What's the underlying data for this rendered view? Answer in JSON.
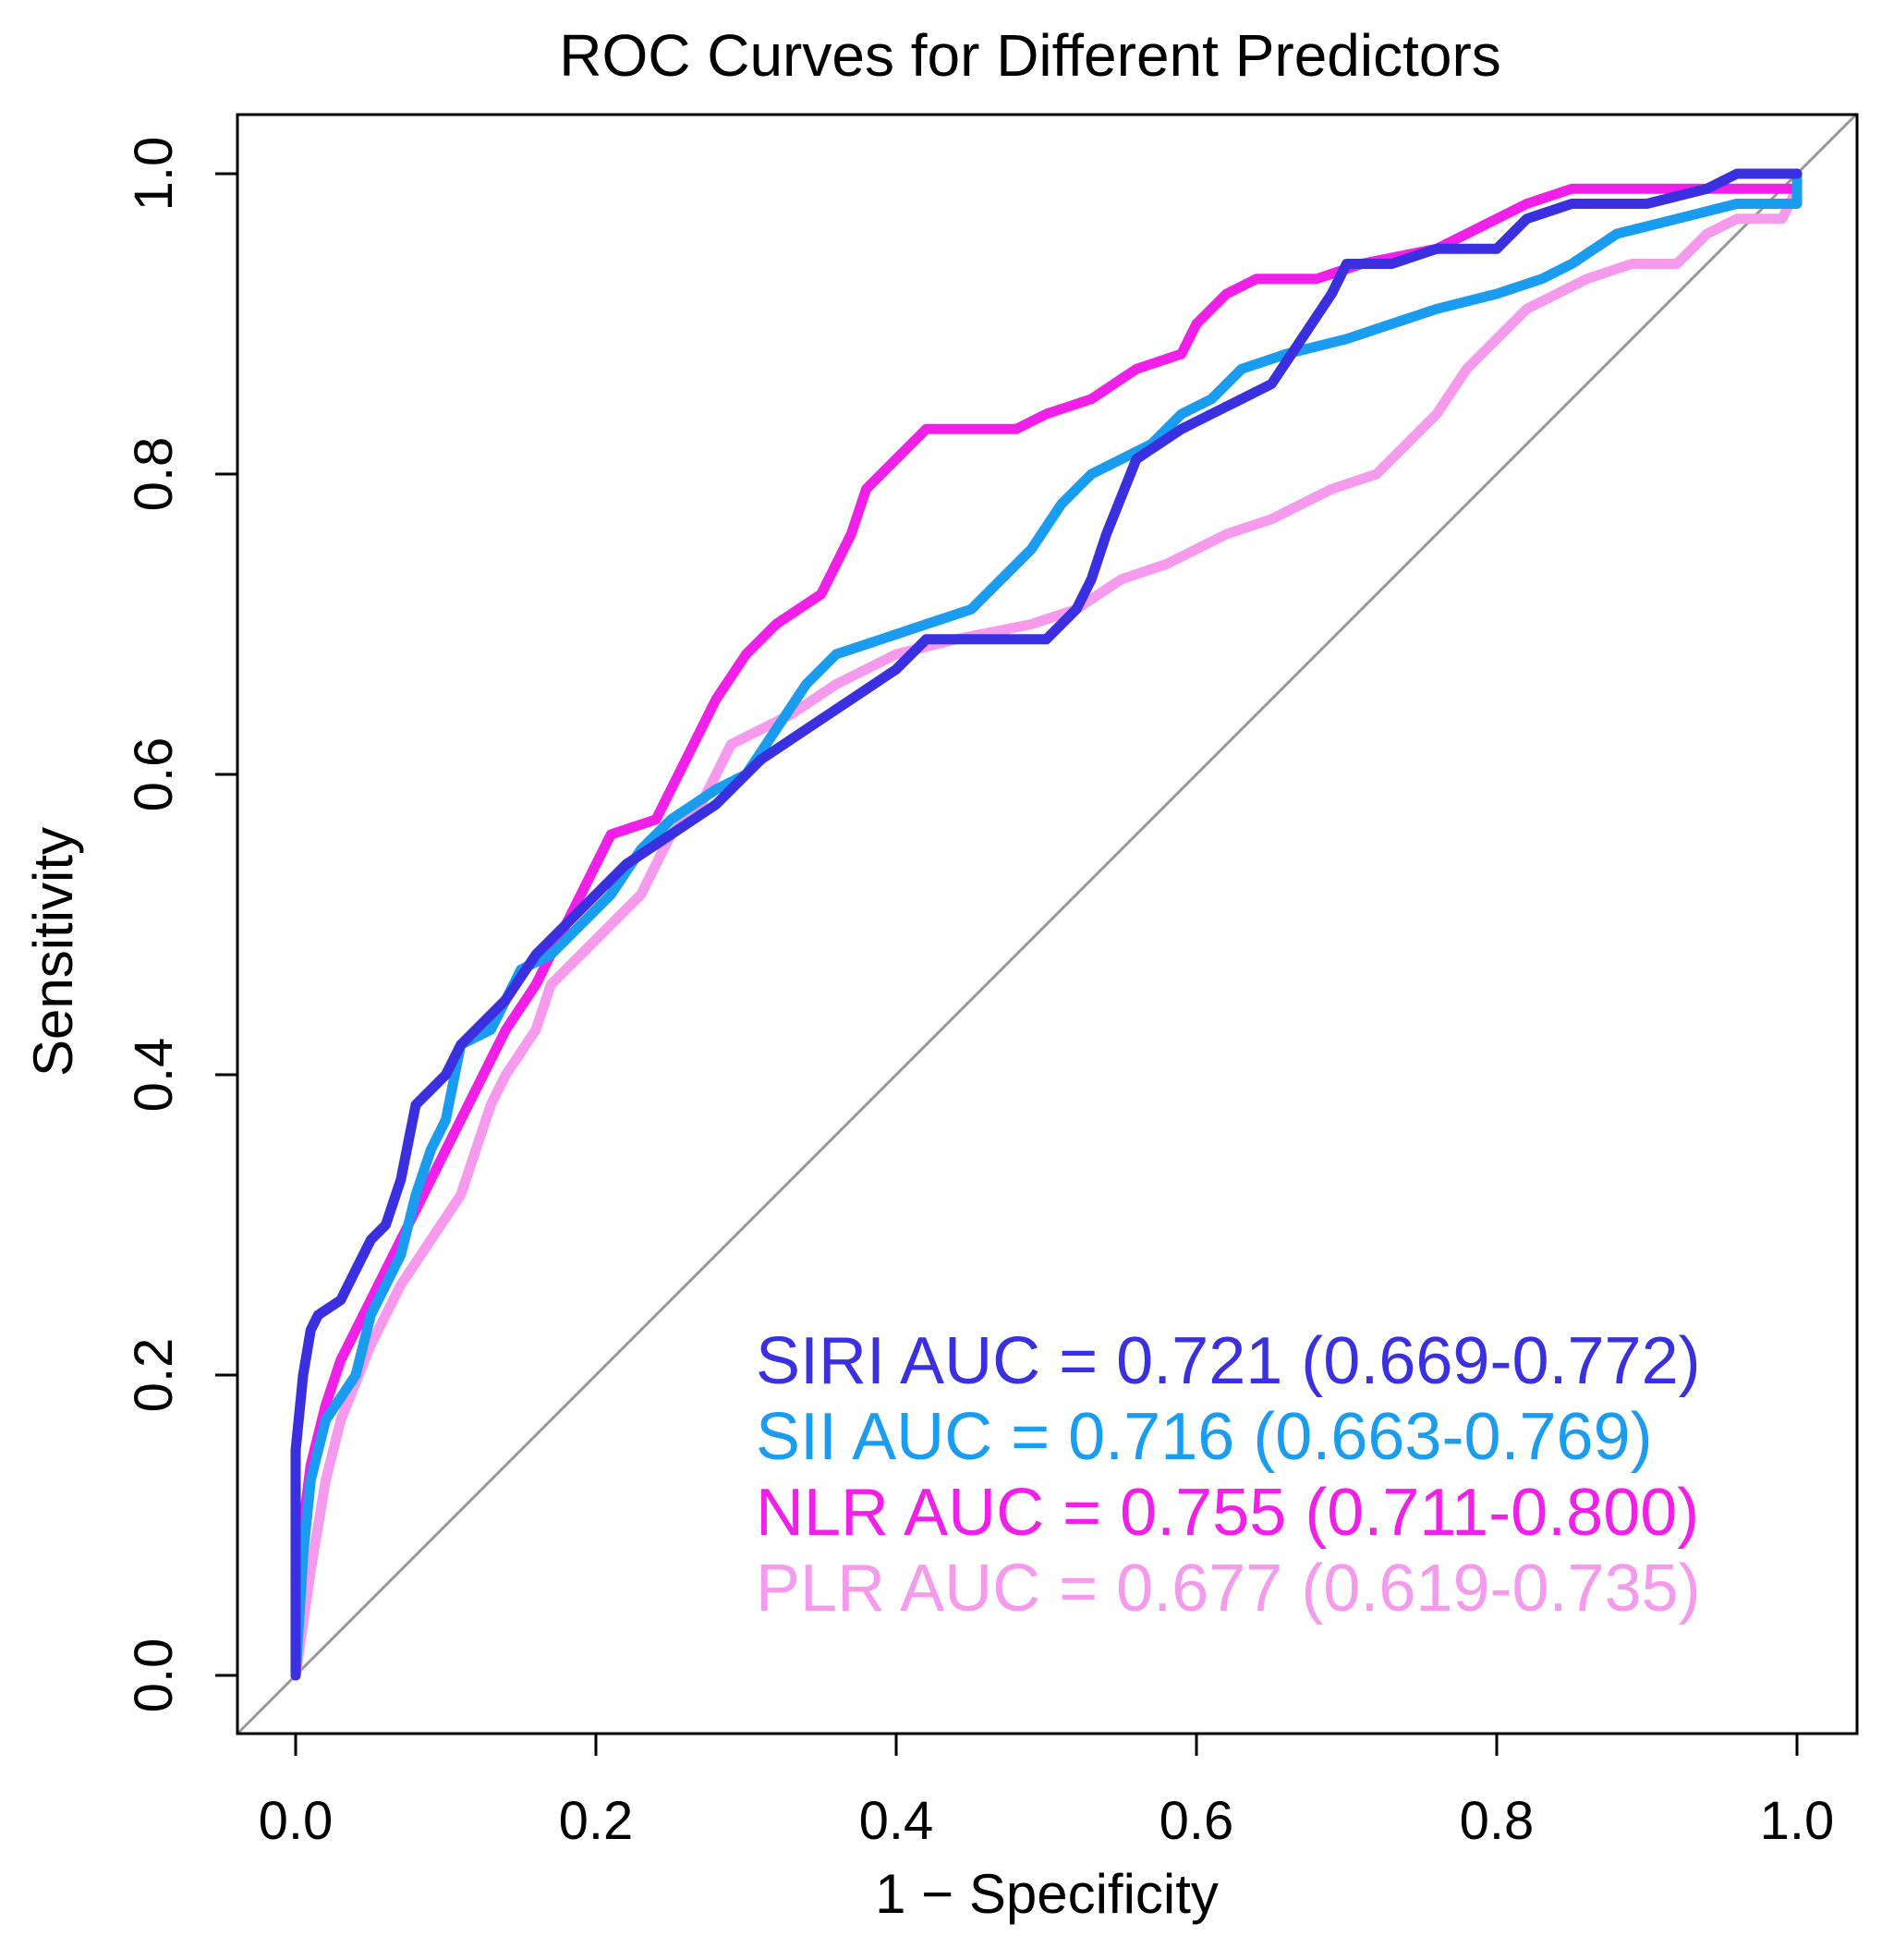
{
  "chart_data": {
    "type": "line",
    "title": "ROC Curves for Different Predictors",
    "xlabel": "1 − Specificity",
    "ylabel": "Sensitivity",
    "xlim": [
      0.0,
      1.0
    ],
    "ylim": [
      0.0,
      1.0
    ],
    "x_ticks": [
      "0.0",
      "0.2",
      "0.4",
      "0.6",
      "0.8",
      "1.0"
    ],
    "y_ticks": [
      "0.0",
      "0.2",
      "0.4",
      "0.6",
      "0.8",
      "1.0"
    ],
    "grid": false,
    "legend_position": "bottom-right",
    "reference_line": {
      "name": "chance diagonal",
      "x": [
        0,
        1
      ],
      "y": [
        0,
        1
      ],
      "color": "#999999"
    },
    "series": [
      {
        "name": "SIRI",
        "color": "#3a30e0",
        "legend_label": "SIRI AUC = 0.721 (0.669-0.772)",
        "points": [
          [
            0,
            0
          ],
          [
            0,
            0.15
          ],
          [
            0.005,
            0.2
          ],
          [
            0.01,
            0.23
          ],
          [
            0.015,
            0.24
          ],
          [
            0.03,
            0.25
          ],
          [
            0.04,
            0.27
          ],
          [
            0.05,
            0.29
          ],
          [
            0.06,
            0.3
          ],
          [
            0.07,
            0.33
          ],
          [
            0.08,
            0.38
          ],
          [
            0.09,
            0.39
          ],
          [
            0.1,
            0.4
          ],
          [
            0.11,
            0.42
          ],
          [
            0.12,
            0.43
          ],
          [
            0.14,
            0.45
          ],
          [
            0.16,
            0.48
          ],
          [
            0.18,
            0.5
          ],
          [
            0.2,
            0.52
          ],
          [
            0.22,
            0.54
          ],
          [
            0.25,
            0.56
          ],
          [
            0.28,
            0.58
          ],
          [
            0.31,
            0.61
          ],
          [
            0.34,
            0.63
          ],
          [
            0.37,
            0.65
          ],
          [
            0.4,
            0.67
          ],
          [
            0.42,
            0.69
          ],
          [
            0.45,
            0.69
          ],
          [
            0.5,
            0.69
          ],
          [
            0.52,
            0.71
          ],
          [
            0.53,
            0.73
          ],
          [
            0.54,
            0.76
          ],
          [
            0.56,
            0.81
          ],
          [
            0.59,
            0.83
          ],
          [
            0.61,
            0.84
          ],
          [
            0.63,
            0.85
          ],
          [
            0.65,
            0.86
          ],
          [
            0.67,
            0.89
          ],
          [
            0.69,
            0.92
          ],
          [
            0.7,
            0.94
          ],
          [
            0.73,
            0.94
          ],
          [
            0.76,
            0.95
          ],
          [
            0.8,
            0.95
          ],
          [
            0.82,
            0.97
          ],
          [
            0.85,
            0.98
          ],
          [
            0.9,
            0.98
          ],
          [
            0.94,
            0.99
          ],
          [
            0.96,
            1.0
          ],
          [
            1.0,
            1.0
          ]
        ]
      },
      {
        "name": "SII",
        "color": "#1a9cf0",
        "legend_label": "SII AUC = 0.716 (0.663-0.769)",
        "points": [
          [
            0,
            0
          ],
          [
            0.005,
            0.08
          ],
          [
            0.01,
            0.13
          ],
          [
            0.02,
            0.17
          ],
          [
            0.04,
            0.2
          ],
          [
            0.05,
            0.24
          ],
          [
            0.07,
            0.28
          ],
          [
            0.08,
            0.32
          ],
          [
            0.09,
            0.35
          ],
          [
            0.1,
            0.37
          ],
          [
            0.11,
            0.42
          ],
          [
            0.13,
            0.43
          ],
          [
            0.15,
            0.47
          ],
          [
            0.17,
            0.48
          ],
          [
            0.19,
            0.5
          ],
          [
            0.21,
            0.52
          ],
          [
            0.23,
            0.55
          ],
          [
            0.25,
            0.57
          ],
          [
            0.28,
            0.59
          ],
          [
            0.3,
            0.6
          ],
          [
            0.32,
            0.63
          ],
          [
            0.34,
            0.66
          ],
          [
            0.36,
            0.68
          ],
          [
            0.39,
            0.69
          ],
          [
            0.42,
            0.7
          ],
          [
            0.45,
            0.71
          ],
          [
            0.47,
            0.73
          ],
          [
            0.49,
            0.75
          ],
          [
            0.51,
            0.78
          ],
          [
            0.53,
            0.8
          ],
          [
            0.55,
            0.81
          ],
          [
            0.57,
            0.82
          ],
          [
            0.59,
            0.84
          ],
          [
            0.61,
            0.85
          ],
          [
            0.63,
            0.87
          ],
          [
            0.66,
            0.88
          ],
          [
            0.7,
            0.89
          ],
          [
            0.73,
            0.9
          ],
          [
            0.76,
            0.91
          ],
          [
            0.8,
            0.92
          ],
          [
            0.83,
            0.93
          ],
          [
            0.85,
            0.94
          ],
          [
            0.88,
            0.96
          ],
          [
            0.92,
            0.97
          ],
          [
            0.96,
            0.98
          ],
          [
            1.0,
            0.98
          ],
          [
            1.0,
            1.0
          ]
        ]
      },
      {
        "name": "NLR",
        "color": "#f020e8",
        "legend_label": "NLR AUC = 0.755 (0.711-0.800)",
        "points": [
          [
            0,
            0
          ],
          [
            0.005,
            0.1
          ],
          [
            0.01,
            0.14
          ],
          [
            0.02,
            0.18
          ],
          [
            0.03,
            0.21
          ],
          [
            0.05,
            0.25
          ],
          [
            0.07,
            0.29
          ],
          [
            0.09,
            0.33
          ],
          [
            0.1,
            0.35
          ],
          [
            0.12,
            0.39
          ],
          [
            0.14,
            0.43
          ],
          [
            0.16,
            0.46
          ],
          [
            0.18,
            0.5
          ],
          [
            0.2,
            0.54
          ],
          [
            0.21,
            0.56
          ],
          [
            0.24,
            0.57
          ],
          [
            0.26,
            0.61
          ],
          [
            0.28,
            0.65
          ],
          [
            0.3,
            0.68
          ],
          [
            0.32,
            0.7
          ],
          [
            0.35,
            0.72
          ],
          [
            0.37,
            0.76
          ],
          [
            0.38,
            0.79
          ],
          [
            0.4,
            0.81
          ],
          [
            0.41,
            0.82
          ],
          [
            0.42,
            0.83
          ],
          [
            0.48,
            0.83
          ],
          [
            0.5,
            0.84
          ],
          [
            0.53,
            0.85
          ],
          [
            0.56,
            0.87
          ],
          [
            0.59,
            0.88
          ],
          [
            0.6,
            0.9
          ],
          [
            0.62,
            0.92
          ],
          [
            0.64,
            0.93
          ],
          [
            0.68,
            0.93
          ],
          [
            0.71,
            0.94
          ],
          [
            0.76,
            0.95
          ],
          [
            0.8,
            0.97
          ],
          [
            0.82,
            0.98
          ],
          [
            0.85,
            0.99
          ],
          [
            0.88,
            0.99
          ],
          [
            0.94,
            0.99
          ],
          [
            1.0,
            0.99
          ],
          [
            1.0,
            1.0
          ]
        ]
      },
      {
        "name": "PLR",
        "color": "#f59aec",
        "legend_label": "PLR AUC = 0.677 (0.619-0.735)",
        "points": [
          [
            0,
            0
          ],
          [
            0.01,
            0.07
          ],
          [
            0.02,
            0.13
          ],
          [
            0.03,
            0.17
          ],
          [
            0.05,
            0.22
          ],
          [
            0.07,
            0.26
          ],
          [
            0.09,
            0.29
          ],
          [
            0.11,
            0.32
          ],
          [
            0.12,
            0.35
          ],
          [
            0.13,
            0.38
          ],
          [
            0.14,
            0.4
          ],
          [
            0.16,
            0.43
          ],
          [
            0.17,
            0.46
          ],
          [
            0.19,
            0.48
          ],
          [
            0.21,
            0.5
          ],
          [
            0.23,
            0.52
          ],
          [
            0.25,
            0.56
          ],
          [
            0.27,
            0.58
          ],
          [
            0.29,
            0.62
          ],
          [
            0.33,
            0.64
          ],
          [
            0.36,
            0.66
          ],
          [
            0.4,
            0.68
          ],
          [
            0.44,
            0.69
          ],
          [
            0.49,
            0.7
          ],
          [
            0.52,
            0.71
          ],
          [
            0.55,
            0.73
          ],
          [
            0.58,
            0.74
          ],
          [
            0.62,
            0.76
          ],
          [
            0.65,
            0.77
          ],
          [
            0.69,
            0.79
          ],
          [
            0.72,
            0.8
          ],
          [
            0.74,
            0.82
          ],
          [
            0.76,
            0.84
          ],
          [
            0.78,
            0.87
          ],
          [
            0.8,
            0.89
          ],
          [
            0.82,
            0.91
          ],
          [
            0.86,
            0.93
          ],
          [
            0.89,
            0.94
          ],
          [
            0.92,
            0.94
          ],
          [
            0.94,
            0.96
          ],
          [
            0.96,
            0.97
          ],
          [
            0.99,
            0.97
          ],
          [
            1.0,
            0.99
          ],
          [
            1.0,
            1.0
          ]
        ]
      }
    ]
  }
}
